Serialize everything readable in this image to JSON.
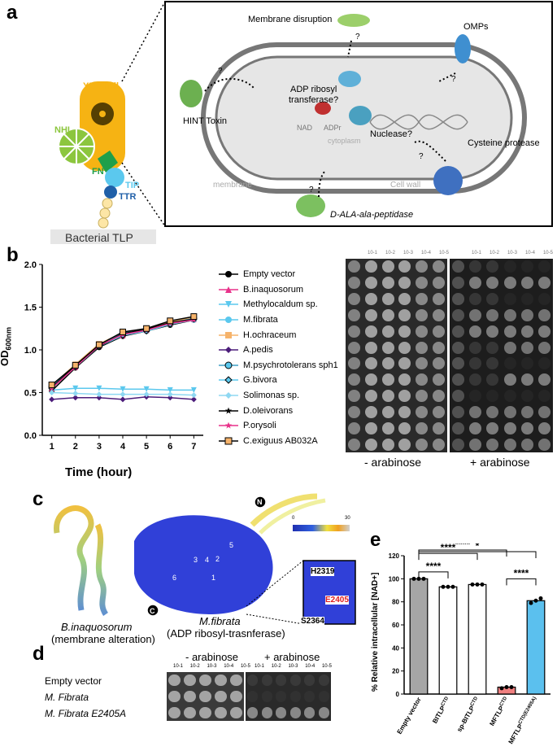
{
  "panels": {
    "a": "a",
    "b": "b",
    "c": "c",
    "d": "d",
    "e": "e"
  },
  "panel_a": {
    "tlp_labels": {
      "yd_shell": "YD-shell",
      "nhl": "NHL",
      "fn": "FN",
      "tip": "TIP",
      "ttr": "TTR",
      "bacterial_tlp": "Bacterial TLP"
    },
    "cell_labels": {
      "membrane_disruption": "Membrane disruption",
      "omps": "OMPs",
      "hint_toxin": "HINT Toxin",
      "adp_ribosyl": "ADP ribosyl",
      "transferase": "transferase?",
      "nad": "NAD",
      "adpr": "ADPr",
      "nuclease": "Nuclease?",
      "cytoplasm": "cytoplasm",
      "cysteine_protease": "Cysteine protease",
      "membrane": "membrane",
      "cell_wall": "Cell wall",
      "dala": "D-ALA-ala-peptidase",
      "q": "?"
    },
    "colors": {
      "yd": "#f6b313",
      "nhl": "#8cc63e",
      "fn": "#1f9f4a",
      "tip": "#5bc8ee",
      "ttr": "#1f5fa8",
      "tail": "#fde6a6"
    }
  },
  "panel_b": {
    "chart_data": {
      "type": "line",
      "xlabel": "Time (hour)",
      "ylabel": "OD",
      "ylabel_sub": "600nm",
      "x": [
        1,
        2,
        3,
        4,
        5,
        6,
        7
      ],
      "ylim": [
        0,
        2.0
      ],
      "yticks": [
        "0.0",
        "0.5",
        "1.0",
        "1.5",
        "2.0"
      ],
      "series": [
        {
          "name": "Empty vector",
          "color": "#000000",
          "marker": "circle",
          "values": [
            0.52,
            0.79,
            1.03,
            1.16,
            1.22,
            1.29,
            1.35
          ]
        },
        {
          "name": "B.inaquosorum",
          "color": "#e8318a",
          "marker": "triangle-up",
          "values": [
            0.55,
            0.8,
            1.05,
            1.17,
            1.23,
            1.31,
            1.36
          ]
        },
        {
          "name": "Methylocaldum sp.",
          "color": "#5bc8ee",
          "marker": "triangle-down",
          "values": [
            0.53,
            0.55,
            0.55,
            0.54,
            0.54,
            0.53,
            0.53
          ]
        },
        {
          "name": "M.fibrata",
          "color": "#5bc8ee",
          "marker": "circle",
          "values": [
            0.56,
            0.81,
            1.06,
            1.18,
            1.22,
            1.3,
            1.35
          ]
        },
        {
          "name": "H.ochraceum",
          "color": "#f6b36b",
          "marker": "square",
          "values": [
            0.58,
            0.83,
            1.07,
            1.2,
            1.24,
            1.33,
            1.38
          ]
        },
        {
          "name": "A.pedis",
          "color": "#4b1c7a",
          "marker": "diamond",
          "values": [
            0.42,
            0.44,
            0.44,
            0.42,
            0.45,
            0.44,
            0.42
          ]
        },
        {
          "name": "M.psychrotolerans sph1",
          "color": "#3f9fc6",
          "marker": "circle-outline",
          "values": [
            0.57,
            0.82,
            1.05,
            1.2,
            1.23,
            1.31,
            1.37
          ]
        },
        {
          "name": "G.bivora",
          "color": "#5bc8ee",
          "marker": "diamond-outline",
          "values": [
            0.55,
            0.8,
            1.04,
            1.17,
            1.22,
            1.3,
            1.36
          ]
        },
        {
          "name": "Solimonas sp.",
          "color": "#8fd8f2",
          "marker": "diamond",
          "values": [
            0.5,
            0.49,
            0.48,
            0.48,
            0.48,
            0.48,
            0.47
          ]
        },
        {
          "name": "D.oleivorans",
          "color": "#000000",
          "marker": "star",
          "values": [
            0.56,
            0.81,
            1.04,
            1.19,
            1.24,
            1.32,
            1.36
          ]
        },
        {
          "name": "P.orysoli",
          "color": "#e8318a",
          "marker": "star",
          "values": [
            0.55,
            0.8,
            1.05,
            1.18,
            1.23,
            1.31,
            1.35
          ]
        },
        {
          "name": "C.exiguus AB032A",
          "color": "#000000",
          "marker": "square-orange",
          "values": [
            0.59,
            0.82,
            1.06,
            1.21,
            1.25,
            1.34,
            1.39
          ]
        }
      ]
    },
    "plate_dilutions": [
      "10-1",
      "10-2",
      "10-3",
      "10-4",
      "10-5"
    ],
    "minus_arabinose": "- arabinose",
    "plus_arabinose": "+ arabinose"
  },
  "panel_c": {
    "b_inaquosorum": "B.inaquosorum",
    "b_sub": "(membrane alteration)",
    "m_fibrata": "M.fibrata",
    "m_sub": "(ADP ribosyl-trasnferase)",
    "scale_min": "0",
    "scale_max": "30",
    "n_label": "N",
    "c_label": "C",
    "h2319": "H2319",
    "e2405": "E2405",
    "s2364": "S2364",
    "strand_labels": [
      "1",
      "2",
      "3",
      "4",
      "5",
      "6"
    ]
  },
  "panel_d": {
    "minus_arabinose": "- arabinose",
    "plus_arabinose": "+ arabinose",
    "rows": [
      "Empty vector",
      "M. Fibrata",
      "M. Fibrata E2405A"
    ],
    "dilutions": [
      "10-1",
      "10-2",
      "10-3",
      "10-4",
      "10-5"
    ]
  },
  "panel_e": {
    "chart_data": {
      "type": "bar",
      "ylabel": "% Relative intracellular [NAD+]",
      "ylim": [
        0,
        120
      ],
      "yticks": [
        "0",
        "20",
        "40",
        "60",
        "80",
        "100",
        "120"
      ],
      "categories": [
        "Empty vector",
        "BITLP",
        "sp-BITLP",
        "MFTLP",
        "MFTLP"
      ],
      "category_sup": [
        "",
        "CTD",
        "CTD",
        "CTD",
        "CTD(E2405A)"
      ],
      "values": [
        100,
        93,
        95,
        6,
        81
      ],
      "colors": [
        "#a6a6a6",
        "#ffffff",
        "#ffffff",
        "#f08080",
        "#5bc0ee"
      ],
      "points": [
        [
          100,
          100,
          100
        ],
        [
          93,
          93,
          93
        ],
        [
          95,
          95,
          95
        ],
        [
          5,
          6,
          6
        ],
        [
          79,
          81,
          83
        ]
      ],
      "significance": [
        "****",
        "****",
        "****",
        "*",
        "****"
      ]
    }
  }
}
